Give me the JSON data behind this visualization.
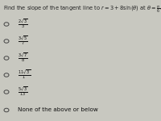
{
  "title_line1": "Find the slope of the tangent line to $r = 3 + 8\\sin(\\theta)$ at $\\theta =$",
  "title_line2": "$\\frac{\\pi}{6}$.",
  "options": [
    "$\\frac{2\\sqrt{3}}{3}$",
    "$\\frac{3\\sqrt{5}}{7}$",
    "$\\frac{3\\sqrt{7}}{8}$",
    "$\\frac{11\\sqrt{3}}{1}$",
    "$\\frac{5\\sqrt{3}}{13}$",
    "None of the above or below"
  ],
  "bg_color": "#c8c8c0",
  "title_color": "#222222",
  "option_color": "#111111",
  "radio_color": "#444444",
  "title_fontsize": 4.8,
  "option_fontsize": 5.2,
  "radio_size": 0.015
}
